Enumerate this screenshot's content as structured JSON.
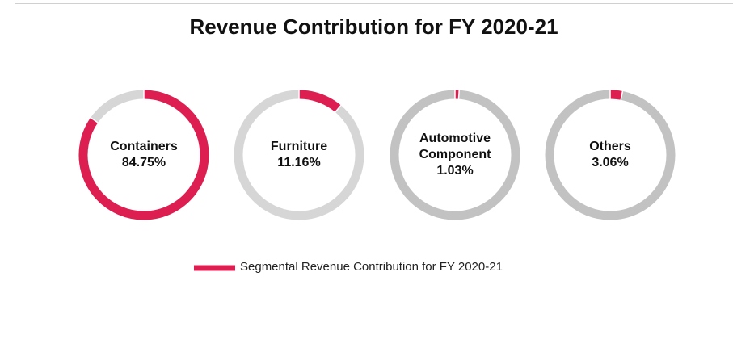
{
  "chart_data": {
    "type": "donut",
    "title": "Revenue Contribution for FY 2020-21",
    "categories": [
      "Containers",
      "Furniture",
      "Automotive Component",
      "Others"
    ],
    "series": [
      {
        "name": "Segmental Revenue Contribution for FY 2020-21",
        "color": "#dc1e50",
        "values": [
          84.75,
          11.16,
          1.03,
          3.06
        ],
        "value_labels": [
          "84.75%",
          "11.16%",
          "1.03%",
          "3.06%"
        ]
      }
    ],
    "track_colors": [
      "#d6d6d6",
      "#d6d6d6",
      "#c2c2c2",
      "#c2c2c2"
    ],
    "legend": "bottom"
  }
}
